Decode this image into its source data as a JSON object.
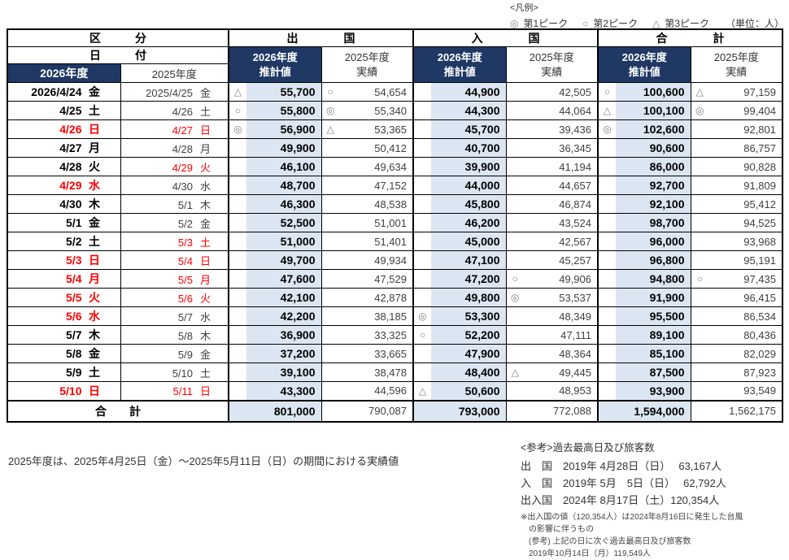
{
  "colors": {
    "header_navy": "#1f3864",
    "estimate_fill": "#dce6f2",
    "holiday_red": "#ff0000",
    "symbol_gray": "#808080"
  },
  "legend": {
    "title": "<凡例>",
    "items": [
      {
        "symbol": "◎",
        "label": "第1ピーク"
      },
      {
        "symbol": "○",
        "label": "第2ピーク"
      },
      {
        "symbol": "△",
        "label": "第3ピーク"
      }
    ],
    "unit": "（単位：人）"
  },
  "table": {
    "headers": {
      "kubun": "区　　　分",
      "hizuke": "日　　　付",
      "groups": [
        "出　　　　国",
        "入　　　　国",
        "合　　　　計"
      ],
      "year2026": "2026年度",
      "year2025": "2025年度",
      "est_line1": "2026年度",
      "est_line2": "推計値",
      "act_line1": "2025年度",
      "act_line2": "実績"
    },
    "rows": [
      {
        "d26": {
          "t": "2026/4/24",
          "w": "金",
          "red": false
        },
        "d25": {
          "t": "2025/4/25",
          "w": "金",
          "red": false
        },
        "c": [
          {
            "s": "△",
            "v": "55,700"
          },
          {
            "s": "○",
            "v": "54,654"
          },
          {
            "s": "",
            "v": "44,900"
          },
          {
            "s": "",
            "v": "42,505"
          },
          {
            "s": "○",
            "v": "100,600"
          },
          {
            "s": "△",
            "v": "97,159"
          }
        ]
      },
      {
        "d26": {
          "t": "4/25",
          "w": "土",
          "red": false
        },
        "d25": {
          "t": "4/26",
          "w": "土",
          "red": false
        },
        "c": [
          {
            "s": "○",
            "v": "55,800"
          },
          {
            "s": "◎",
            "v": "55,340"
          },
          {
            "s": "",
            "v": "44,300"
          },
          {
            "s": "",
            "v": "44,064"
          },
          {
            "s": "△",
            "v": "100,100"
          },
          {
            "s": "◎",
            "v": "99,404"
          }
        ]
      },
      {
        "d26": {
          "t": "4/26",
          "w": "日",
          "red": true
        },
        "d25": {
          "t": "4/27",
          "w": "日",
          "red": true
        },
        "c": [
          {
            "s": "◎",
            "v": "56,900"
          },
          {
            "s": "△",
            "v": "53,365"
          },
          {
            "s": "",
            "v": "45,700"
          },
          {
            "s": "",
            "v": "39,436"
          },
          {
            "s": "◎",
            "v": "102,600"
          },
          {
            "s": "",
            "v": "92,801"
          }
        ]
      },
      {
        "d26": {
          "t": "4/27",
          "w": "月",
          "red": false
        },
        "d25": {
          "t": "4/28",
          "w": "月",
          "red": false
        },
        "c": [
          {
            "s": "",
            "v": "49,900"
          },
          {
            "s": "",
            "v": "50,412"
          },
          {
            "s": "",
            "v": "40,700"
          },
          {
            "s": "",
            "v": "36,345"
          },
          {
            "s": "",
            "v": "90,600"
          },
          {
            "s": "",
            "v": "86,757"
          }
        ]
      },
      {
        "d26": {
          "t": "4/28",
          "w": "火",
          "red": false
        },
        "d25": {
          "t": "4/29",
          "w": "火",
          "red": true
        },
        "c": [
          {
            "s": "",
            "v": "46,100"
          },
          {
            "s": "",
            "v": "49,634"
          },
          {
            "s": "",
            "v": "39,900"
          },
          {
            "s": "",
            "v": "41,194"
          },
          {
            "s": "",
            "v": "86,000"
          },
          {
            "s": "",
            "v": "90,828"
          }
        ]
      },
      {
        "d26": {
          "t": "4/29",
          "w": "水",
          "red": true
        },
        "d25": {
          "t": "4/30",
          "w": "水",
          "red": false
        },
        "c": [
          {
            "s": "",
            "v": "48,700"
          },
          {
            "s": "",
            "v": "47,152"
          },
          {
            "s": "",
            "v": "44,000"
          },
          {
            "s": "",
            "v": "44,657"
          },
          {
            "s": "",
            "v": "92,700"
          },
          {
            "s": "",
            "v": "91,809"
          }
        ]
      },
      {
        "d26": {
          "t": "4/30",
          "w": "木",
          "red": false
        },
        "d25": {
          "t": "5/1",
          "w": "木",
          "red": false
        },
        "c": [
          {
            "s": "",
            "v": "46,300"
          },
          {
            "s": "",
            "v": "48,538"
          },
          {
            "s": "",
            "v": "45,800"
          },
          {
            "s": "",
            "v": "46,874"
          },
          {
            "s": "",
            "v": "92,100"
          },
          {
            "s": "",
            "v": "95,412"
          }
        ]
      },
      {
        "d26": {
          "t": "5/1",
          "w": "金",
          "red": false
        },
        "d25": {
          "t": "5/2",
          "w": "金",
          "red": false
        },
        "c": [
          {
            "s": "",
            "v": "52,500"
          },
          {
            "s": "",
            "v": "51,001"
          },
          {
            "s": "",
            "v": "46,200"
          },
          {
            "s": "",
            "v": "43,524"
          },
          {
            "s": "",
            "v": "98,700"
          },
          {
            "s": "",
            "v": "94,525"
          }
        ]
      },
      {
        "d26": {
          "t": "5/2",
          "w": "土",
          "red": false
        },
        "d25": {
          "t": "5/3",
          "w": "土",
          "red": true
        },
        "c": [
          {
            "s": "",
            "v": "51,000"
          },
          {
            "s": "",
            "v": "51,401"
          },
          {
            "s": "",
            "v": "45,000"
          },
          {
            "s": "",
            "v": "42,567"
          },
          {
            "s": "",
            "v": "96,000"
          },
          {
            "s": "",
            "v": "93,968"
          }
        ]
      },
      {
        "d26": {
          "t": "5/3",
          "w": "日",
          "red": true
        },
        "d25": {
          "t": "5/4",
          "w": "日",
          "red": true
        },
        "c": [
          {
            "s": "",
            "v": "49,700"
          },
          {
            "s": "",
            "v": "49,934"
          },
          {
            "s": "",
            "v": "47,100"
          },
          {
            "s": "",
            "v": "45,257"
          },
          {
            "s": "",
            "v": "96,800"
          },
          {
            "s": "",
            "v": "95,191"
          }
        ]
      },
      {
        "d26": {
          "t": "5/4",
          "w": "月",
          "red": true
        },
        "d25": {
          "t": "5/5",
          "w": "月",
          "red": true
        },
        "c": [
          {
            "s": "",
            "v": "47,600"
          },
          {
            "s": "",
            "v": "47,529"
          },
          {
            "s": "",
            "v": "47,200"
          },
          {
            "s": "○",
            "v": "49,906"
          },
          {
            "s": "",
            "v": "94,800"
          },
          {
            "s": "○",
            "v": "97,435"
          }
        ]
      },
      {
        "d26": {
          "t": "5/5",
          "w": "火",
          "red": true
        },
        "d25": {
          "t": "5/6",
          "w": "火",
          "red": true
        },
        "c": [
          {
            "s": "",
            "v": "42,100"
          },
          {
            "s": "",
            "v": "42,878"
          },
          {
            "s": "",
            "v": "49,800"
          },
          {
            "s": "◎",
            "v": "53,537"
          },
          {
            "s": "",
            "v": "91,900"
          },
          {
            "s": "",
            "v": "96,415"
          }
        ]
      },
      {
        "d26": {
          "t": "5/6",
          "w": "水",
          "red": true
        },
        "d25": {
          "t": "5/7",
          "w": "水",
          "red": false
        },
        "c": [
          {
            "s": "",
            "v": "42,200"
          },
          {
            "s": "",
            "v": "38,185"
          },
          {
            "s": "◎",
            "v": "53,300"
          },
          {
            "s": "",
            "v": "48,349"
          },
          {
            "s": "",
            "v": "95,500"
          },
          {
            "s": "",
            "v": "86,534"
          }
        ]
      },
      {
        "d26": {
          "t": "5/7",
          "w": "木",
          "red": false
        },
        "d25": {
          "t": "5/8",
          "w": "木",
          "red": false
        },
        "c": [
          {
            "s": "",
            "v": "36,900"
          },
          {
            "s": "",
            "v": "33,325"
          },
          {
            "s": "○",
            "v": "52,200"
          },
          {
            "s": "",
            "v": "47,111"
          },
          {
            "s": "",
            "v": "89,100"
          },
          {
            "s": "",
            "v": "80,436"
          }
        ]
      },
      {
        "d26": {
          "t": "5/8",
          "w": "金",
          "red": false
        },
        "d25": {
          "t": "5/9",
          "w": "金",
          "red": false
        },
        "c": [
          {
            "s": "",
            "v": "37,200"
          },
          {
            "s": "",
            "v": "33,665"
          },
          {
            "s": "",
            "v": "47,900"
          },
          {
            "s": "",
            "v": "48,364"
          },
          {
            "s": "",
            "v": "85,100"
          },
          {
            "s": "",
            "v": "82,029"
          }
        ]
      },
      {
        "d26": {
          "t": "5/9",
          "w": "土",
          "red": false
        },
        "d25": {
          "t": "5/10",
          "w": "土",
          "red": false
        },
        "c": [
          {
            "s": "",
            "v": "39,100"
          },
          {
            "s": "",
            "v": "38,478"
          },
          {
            "s": "",
            "v": "48,400"
          },
          {
            "s": "△",
            "v": "49,445"
          },
          {
            "s": "",
            "v": "87,500"
          },
          {
            "s": "",
            "v": "87,923"
          }
        ]
      },
      {
        "d26": {
          "t": "5/10",
          "w": "日",
          "red": true
        },
        "d25": {
          "t": "5/11",
          "w": "日",
          "red": true
        },
        "c": [
          {
            "s": "",
            "v": "43,300"
          },
          {
            "s": "",
            "v": "44,596"
          },
          {
            "s": "△",
            "v": "50,600"
          },
          {
            "s": "",
            "v": "48,953"
          },
          {
            "s": "",
            "v": "93,900"
          },
          {
            "s": "",
            "v": "93,549"
          }
        ]
      }
    ],
    "total": {
      "label": "合　　計",
      "values": [
        "801,000",
        "790,087",
        "793,000",
        "772,088",
        "1,594,000",
        "1,562,175"
      ]
    }
  },
  "footnote": "2025年度は、2025年4月25日（金）～2025年5月11日（日）の期間における実績値",
  "reference": {
    "title": "<参考>過去最高日及び旅客数",
    "lines": [
      "出　国　2019年 4月28日（日）　 63,167人",
      "入　国　2019年 5月　5日（日）　 62,792人",
      "出入国　2024年 8月17日（土）120,354人"
    ],
    "notes": [
      "※出入国の値（120,354人）は2024年8月16日に発生した台風",
      "　の影響に伴うもの",
      "　(参考) 上記の日に次ぐ過去最高日及び旅客数",
      "　2019年10月14日（月）119,549人"
    ]
  }
}
